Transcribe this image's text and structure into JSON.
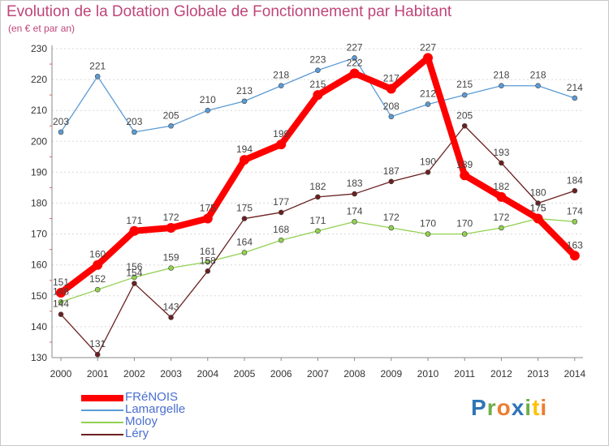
{
  "chart_data": {
    "type": "line",
    "title": "Evolution de la Dotation Globale de Fonctionnement par Habitant",
    "subtitle": "(en € et par an)",
    "xlabel": "",
    "ylabel": "",
    "categories": [
      "2000",
      "2001",
      "2002",
      "2003",
      "2004",
      "2005",
      "2006",
      "2007",
      "2008",
      "2009",
      "2010",
      "2011",
      "2012",
      "2013",
      "2014"
    ],
    "ylim": [
      130,
      230
    ],
    "yticks": [
      "130",
      "140",
      "150",
      "160",
      "170",
      "180",
      "190",
      "200",
      "210",
      "220",
      "230"
    ],
    "grid": "horizontal dashed",
    "legend": "bottom-left",
    "series": [
      {
        "name": "Lamargelle",
        "color": "#5b9bd5",
        "values": [
          203,
          221,
          203,
          205,
          210,
          213,
          218,
          223,
          227,
          208,
          212,
          215,
          218,
          218,
          214
        ]
      },
      {
        "name": "Moloy",
        "color": "#92d050",
        "values": [
          148,
          152,
          156,
          159,
          161,
          164,
          168,
          171,
          174,
          172,
          170,
          170,
          172,
          175,
          174
        ]
      },
      {
        "name": "Léry",
        "color": "#6b2020",
        "values": [
          144,
          131,
          154,
          143,
          158,
          175,
          177,
          182,
          183,
          187,
          190,
          205,
          193,
          180,
          184
        ]
      },
      {
        "name": "FRéNOIS",
        "color": "#ff0000",
        "values": [
          151,
          160,
          171,
          172,
          175,
          194,
          199,
          215,
          222,
          217,
          227,
          189,
          182,
          175,
          163
        ]
      }
    ]
  },
  "legend": {
    "items": [
      {
        "label": "FRéNOIS",
        "color": "#ff0000"
      },
      {
        "label": "Lamargelle",
        "color": "#5b9bd5"
      },
      {
        "label": "Moloy",
        "color": "#92d050"
      },
      {
        "label": "Léry",
        "color": "#6b2020"
      }
    ]
  },
  "brand": {
    "letters": [
      "P",
      "r",
      "o",
      "x",
      "i",
      "t",
      "i"
    ],
    "colors": [
      "#2e75b6",
      "#70ad47",
      "#ed7d31",
      "#2e75b6",
      "#70ad47",
      "#ffc000",
      "#ed7d31"
    ]
  }
}
